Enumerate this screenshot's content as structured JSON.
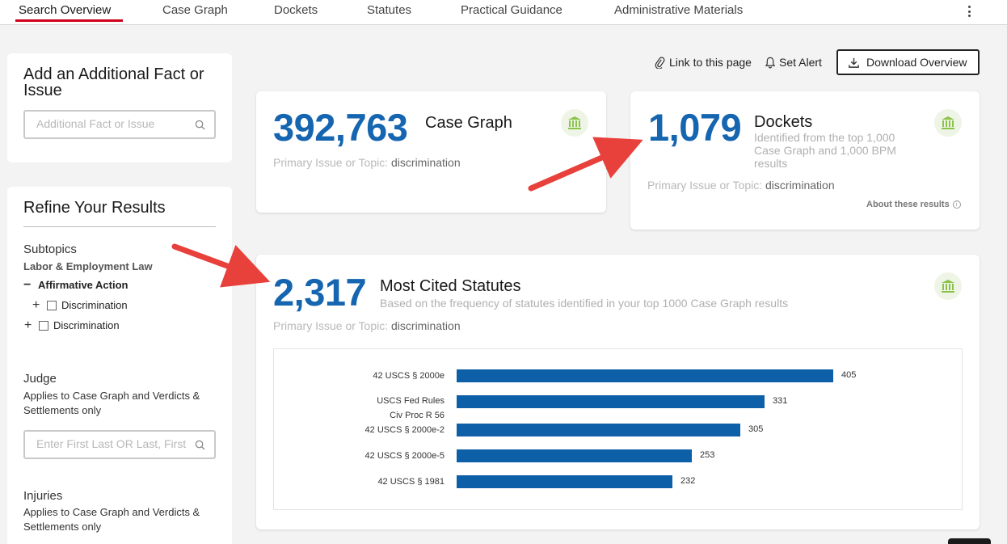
{
  "tabs": [
    {
      "label": "Search Overview",
      "active": true
    },
    {
      "label": "Case Graph"
    },
    {
      "label": "Dockets"
    },
    {
      "label": "Statutes"
    },
    {
      "label": "Practical Guidance"
    },
    {
      "label": "Administrative Materials"
    }
  ],
  "add_fact": {
    "title": "Add an Additional Fact or Issue",
    "placeholder": "Additional Fact or Issue"
  },
  "refine": {
    "title": "Refine Your Results",
    "subtopics": {
      "heading": "Subtopics",
      "category": "Labor & Employment Law",
      "tree": [
        {
          "toggle": "−",
          "label": "Affirmative Action",
          "bold": true
        },
        {
          "toggle": "+",
          "label": "Discrimination",
          "checkbox": true
        },
        {
          "toggle": "+",
          "label": "Discrimination",
          "checkbox": true
        }
      ]
    },
    "judge": {
      "heading": "Judge",
      "note": "Applies to Case Graph and Verdicts & Settlements only",
      "placeholder": "Enter First Last OR Last, First"
    },
    "injuries": {
      "heading": "Injuries",
      "note": "Applies to Case Graph and Verdicts & Settlements only"
    }
  },
  "actions": {
    "link": "Link to this page",
    "alert": "Set Alert",
    "download": "Download Overview"
  },
  "cards": {
    "case_graph": {
      "count": "392,763",
      "title": "Case Graph",
      "topic_label": "Primary Issue or Topic:",
      "topic_value": "discrimination"
    },
    "dockets": {
      "count": "1,079",
      "title": "Dockets",
      "description": "Identified from the top 1,000 Case Graph and 1,000 BPM results",
      "topic_label": "Primary Issue or Topic:",
      "topic_value": "discrimination",
      "about": "About these results"
    },
    "statutes": {
      "count": "2,317",
      "title": "Most Cited Statutes",
      "description": "Based on the frequency of statutes identified in your top 1000 Case Graph results",
      "topic_label": "Primary Issue or Topic:",
      "topic_value": "discrimination"
    }
  },
  "chart_data": {
    "type": "bar",
    "orientation": "horizontal",
    "categories": [
      "42 USCS § 2000e",
      "USCS Fed Rules Civ Proc R 56",
      "42 USCS § 2000e-2",
      "42 USCS § 2000e-5",
      "42 USCS § 1981"
    ],
    "values": [
      405,
      331,
      305,
      253,
      232
    ],
    "bar_color": "#0d5fa8",
    "title": "",
    "xlabel": "",
    "ylabel": "",
    "xlim": [
      0,
      405
    ],
    "grid": false,
    "legend": "none"
  },
  "colors": {
    "accent": "#1565b0",
    "tab_underline": "#d0021b",
    "arrow": "#e8403a",
    "icon_green": "#8bc34a"
  },
  "icons": {
    "search": "search-icon",
    "link": "paperclip-icon",
    "alert": "bell-icon",
    "download": "download-icon",
    "bank": "courthouse-icon",
    "info": "info-icon",
    "more": "kebab-menu-icon"
  }
}
